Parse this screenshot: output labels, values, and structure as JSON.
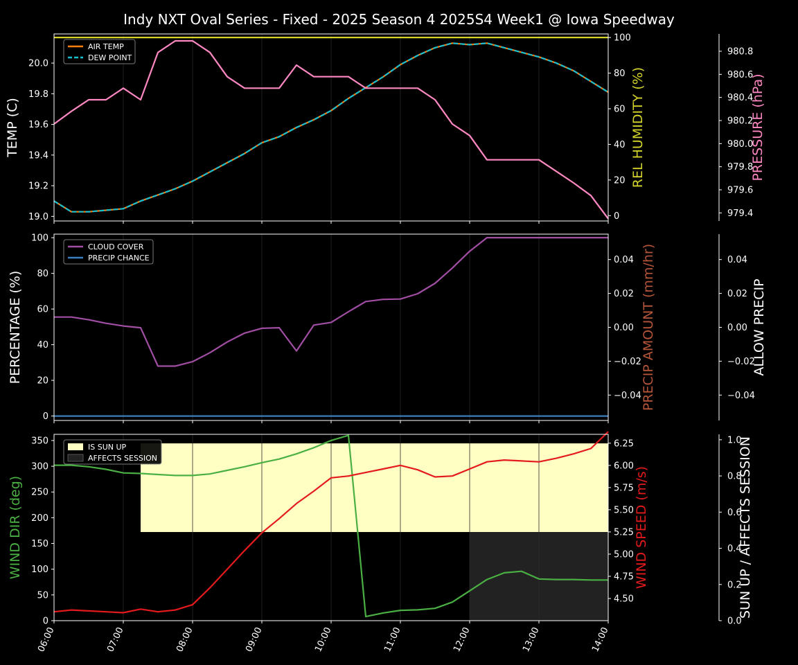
{
  "title": "Indy NXT Oval Series - Fixed - 2025 Season 4 2025S4 Week1 @ Iowa Speedway",
  "colors": {
    "background": "#000000",
    "axis": "#ffffff",
    "grid": "#2a2a2a",
    "air_temp": "#ff7f0e",
    "dew_point": "#17becf",
    "humidity": "#d4d42a",
    "pressure": "#ff88c2",
    "cloud": "#a14ea4",
    "precip_chance": "#3a7fc0",
    "precip_amount_label": "#b5553a",
    "wind_dir": "#4bb043",
    "wind_speed": "#e41a1c",
    "sun_up": "#ffffc4",
    "affects": "#222222"
  },
  "chart_data": [
    {
      "type": "line",
      "panel": "temperature",
      "x": [
        "06:00",
        "06:15",
        "06:30",
        "06:45",
        "07:00",
        "07:15",
        "07:30",
        "07:45",
        "08:00",
        "08:15",
        "08:30",
        "08:45",
        "09:00",
        "09:15",
        "09:30",
        "09:45",
        "10:00",
        "10:15",
        "10:30",
        "10:45",
        "11:00",
        "11:15",
        "11:30",
        "11:45",
        "12:00",
        "12:15",
        "12:30",
        "12:45",
        "13:00",
        "13:15",
        "13:30",
        "13:45",
        "14:00"
      ],
      "xlim": [
        "06:00",
        "14:00"
      ],
      "xticks": [
        "06:00",
        "07:00",
        "08:00",
        "09:00",
        "10:00",
        "11:00",
        "12:00",
        "13:00",
        "14:00"
      ],
      "ylabel": "TEMP (C)",
      "ylim": [
        18.97,
        20.19
      ],
      "yticks": [
        "19.0",
        "19.2",
        "19.4",
        "19.6",
        "19.8",
        "20.0"
      ],
      "y2label": "REL HUMIDITY (%)",
      "y2lim": [
        -3,
        102
      ],
      "y2ticks": [
        "0",
        "20",
        "40",
        "60",
        "80",
        "100"
      ],
      "y3label": "PRESSURE (hPa)",
      "y3lim": [
        979.33,
        980.95
      ],
      "y3ticks": [
        "979.4",
        "979.6",
        "979.8",
        "980.0",
        "980.2",
        "980.4",
        "980.6",
        "980.8"
      ],
      "legend": [
        "AIR TEMP",
        "DEW POINT"
      ],
      "legend_position": "top-left",
      "series": [
        {
          "name": "AIR TEMP",
          "axis": "y",
          "values": [
            19.1,
            19.03,
            19.03,
            19.04,
            19.05,
            19.1,
            19.14,
            19.18,
            19.23,
            19.29,
            19.35,
            19.41,
            19.48,
            19.52,
            19.58,
            19.63,
            19.69,
            19.77,
            19.84,
            19.91,
            19.99,
            20.05,
            20.1,
            20.13,
            20.12,
            20.13,
            20.1,
            20.07,
            20.04,
            20.0,
            19.95,
            19.88,
            19.81
          ]
        },
        {
          "name": "DEW POINT",
          "axis": "y",
          "values": [
            19.1,
            19.03,
            19.03,
            19.04,
            19.05,
            19.1,
            19.14,
            19.18,
            19.23,
            19.29,
            19.35,
            19.41,
            19.48,
            19.52,
            19.58,
            19.63,
            19.69,
            19.77,
            19.84,
            19.91,
            19.99,
            20.05,
            20.1,
            20.13,
            20.12,
            20.13,
            20.1,
            20.07,
            20.04,
            20.0,
            19.95,
            19.88,
            19.81
          ]
        },
        {
          "axis": "y2",
          "values": [
            100,
            100,
            100,
            100,
            100,
            100,
            100,
            100,
            100,
            100,
            100,
            100,
            100,
            100,
            100,
            100,
            100,
            100,
            100,
            100,
            100,
            100,
            100,
            100,
            100,
            100,
            100,
            100,
            100,
            100,
            100,
            100,
            100
          ]
        },
        {
          "axis": "y3",
          "values": [
            980.17,
            980.28,
            980.38,
            980.38,
            980.48,
            980.38,
            980.79,
            980.89,
            980.89,
            980.79,
            980.58,
            980.48,
            980.48,
            980.48,
            980.68,
            980.58,
            980.58,
            980.58,
            980.48,
            980.48,
            980.48,
            980.48,
            980.38,
            980.17,
            980.07,
            979.86,
            979.86,
            979.86,
            979.86,
            979.76,
            979.66,
            979.55,
            979.35
          ]
        }
      ]
    },
    {
      "type": "line",
      "panel": "precipitation",
      "x": [
        "06:00",
        "06:15",
        "06:30",
        "06:45",
        "07:00",
        "07:15",
        "07:30",
        "07:45",
        "08:00",
        "08:15",
        "08:30",
        "08:45",
        "09:00",
        "09:15",
        "09:30",
        "09:45",
        "10:00",
        "10:15",
        "10:30",
        "10:45",
        "11:00",
        "11:15",
        "11:30",
        "11:45",
        "12:00",
        "12:15",
        "12:30",
        "12:45",
        "13:00",
        "13:15",
        "13:30",
        "13:45",
        "14:00"
      ],
      "xlim": [
        "06:00",
        "14:00"
      ],
      "ylabel": "PERCENTAGE (%)",
      "ylim": [
        -2.5,
        102
      ],
      "yticks": [
        "0",
        "20",
        "40",
        "60",
        "80",
        "100"
      ],
      "y2label": "PRECIP AMOUNT (mm/hr)",
      "y2lim": [
        -0.055,
        0.055
      ],
      "y2ticks": [
        "−0.04",
        "−0.02",
        "0.00",
        "0.02",
        "0.04"
      ],
      "y3label": "ALLOW PRECIP",
      "y3lim": [
        -0.055,
        0.055
      ],
      "y3ticks": [
        "−0.04",
        "−0.02",
        "0.00",
        "0.02",
        "0.04"
      ],
      "legend": [
        "CLOUD COVER",
        "PRECIP CHANCE"
      ],
      "legend_position": "top-left",
      "series": [
        {
          "name": "CLOUD COVER",
          "axis": "y",
          "values": [
            55.5,
            55.5,
            54,
            52,
            50.5,
            49.5,
            28,
            28,
            30.5,
            35.5,
            41.5,
            46.5,
            49.2,
            49.5,
            36.5,
            51,
            52.5,
            58.5,
            64.2,
            65.4,
            65.6,
            68.6,
            74.4,
            83,
            92.4,
            100,
            100,
            100,
            100,
            100,
            100,
            100,
            100
          ]
        },
        {
          "name": "PRECIP CHANCE",
          "axis": "y",
          "values": [
            0,
            0,
            0,
            0,
            0,
            0,
            0,
            0,
            0,
            0,
            0,
            0,
            0,
            0,
            0,
            0,
            0,
            0,
            0,
            0,
            0,
            0,
            0,
            0,
            0,
            0,
            0,
            0,
            0,
            0,
            0,
            0,
            0
          ]
        }
      ]
    },
    {
      "type": "line",
      "panel": "wind",
      "x": [
        "06:00",
        "06:15",
        "06:30",
        "06:45",
        "07:00",
        "07:15",
        "07:30",
        "07:45",
        "08:00",
        "08:15",
        "08:30",
        "08:45",
        "09:00",
        "09:15",
        "09:30",
        "09:45",
        "10:00",
        "10:15",
        "10:30",
        "10:45",
        "11:00",
        "11:15",
        "11:30",
        "11:45",
        "12:00",
        "12:15",
        "12:30",
        "12:45",
        "13:00",
        "13:15",
        "13:30",
        "13:45",
        "14:00"
      ],
      "xlim": [
        "06:00",
        "14:00"
      ],
      "xticks": [
        "06:00",
        "07:00",
        "08:00",
        "09:00",
        "10:00",
        "11:00",
        "12:00",
        "13:00",
        "14:00"
      ],
      "ylabel": "WIND DIR (deg)",
      "ylim": [
        0,
        362
      ],
      "yticks": [
        "0",
        "50",
        "100",
        "150",
        "200",
        "250",
        "300",
        "350"
      ],
      "y2label": "WIND SPEED (m/s)",
      "y2lim": [
        4.25,
        6.35
      ],
      "y2ticks": [
        "4.50",
        "4.75",
        "5.00",
        "5.25",
        "5.50",
        "5.75",
        "6.00",
        "6.25"
      ],
      "y3label": "SUN UP / AFFECTS SESSION",
      "y3lim": [
        0,
        1.03
      ],
      "y3ticks": [
        "0.0",
        "0.2",
        "0.4",
        "0.6",
        "0.8",
        "1.0"
      ],
      "legend": [
        "IS SUN UP",
        "AFFECTS SESSION"
      ],
      "legend_position": "top-left",
      "bands": [
        {
          "name": "IS SUN UP",
          "start": "07:15",
          "end": "14:00",
          "level": 1.0,
          "range": [
            0.49,
            0.98
          ]
        },
        {
          "name": "AFFECTS SESSION",
          "start": "12:00",
          "end": "14:00",
          "level": 0.49
        }
      ],
      "series": [
        {
          "axis": "y",
          "values": [
            302,
            302,
            299,
            294,
            287,
            286,
            284,
            282,
            282,
            285,
            292,
            299,
            307,
            314,
            324,
            336,
            350,
            360,
            8,
            15,
            20,
            21,
            24,
            36,
            58,
            80,
            93,
            96,
            81,
            80,
            80,
            79,
            79
          ]
        },
        {
          "axis": "y2",
          "values": [
            4.35,
            4.37,
            4.36,
            4.35,
            4.34,
            4.38,
            4.35,
            4.37,
            4.43,
            4.62,
            4.83,
            5.04,
            5.24,
            5.4,
            5.57,
            5.71,
            5.86,
            5.88,
            5.92,
            5.96,
            6.0,
            5.95,
            5.87,
            5.88,
            5.96,
            6.04,
            6.06,
            6.05,
            6.04,
            6.08,
            6.13,
            6.19,
            6.38
          ]
        }
      ]
    }
  ]
}
